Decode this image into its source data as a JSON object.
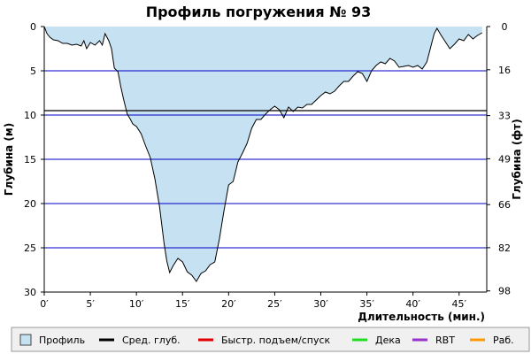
{
  "chart_data": {
    "type": "area",
    "title": "Профиль погружения № 93",
    "xlabel": "Длительность (мин.)",
    "ylabel_left": "Глубина (м)",
    "ylabel_right": "Глубина (фт)",
    "xlim": [
      0,
      48
    ],
    "ylim": [
      0,
      30
    ],
    "x_ticks": [
      0,
      5,
      10,
      15,
      20,
      25,
      30,
      35,
      40,
      45
    ],
    "x_tick_labels": [
      "0′",
      "5′",
      "10′",
      "15′",
      "20′",
      "25′",
      "30′",
      "35′",
      "40′",
      "45′"
    ],
    "y_ticks_left": [
      0,
      5,
      10,
      15,
      20,
      25,
      30
    ],
    "y_tick_labels_left": [
      "0",
      "5",
      "10",
      "15",
      "20",
      "25",
      "30"
    ],
    "y_ticks_right_depth_m": [
      0,
      4.88,
      10.06,
      14.94,
      20.12,
      24.99,
      29.87
    ],
    "y_tick_labels_right": [
      "0",
      "16",
      "33",
      "49",
      "66",
      "82",
      "98"
    ],
    "avg_depth_m": 9.5,
    "grid": "horizontal",
    "colors": {
      "profile_fill": "#c5e1f2",
      "profile_line": "#000000",
      "grid": "#0000c8",
      "avg_depth": "#000000",
      "fast_ascent": "#e00000",
      "deco": "#22dd22",
      "rbt": "#9933cc",
      "work": "#ff9900"
    },
    "series": [
      {
        "name": "Профиль",
        "x": [
          0,
          0.3,
          0.6,
          1,
          1.5,
          2,
          2.5,
          3,
          3.5,
          4,
          4.3,
          4.6,
          5,
          5.5,
          6,
          6.3,
          6.6,
          7,
          7.3,
          7.6,
          8,
          8.3,
          8.6,
          9,
          9.3,
          9.6,
          10,
          10.5,
          11,
          11.5,
          12,
          12.5,
          13,
          13.3,
          13.6,
          14,
          14.5,
          15,
          15.5,
          16,
          16.5,
          17,
          17.5,
          18,
          18.5,
          19,
          19.5,
          20,
          20.5,
          21,
          21.5,
          22,
          22.5,
          23,
          23.5,
          24,
          24.5,
          25,
          25.5,
          26,
          26.5,
          27,
          27.5,
          28,
          28.5,
          29,
          29.5,
          30,
          30.5,
          31,
          31.5,
          32,
          32.5,
          33,
          33.5,
          34,
          34.5,
          35,
          35.5,
          36,
          36.5,
          37,
          37.5,
          38,
          38.5,
          39,
          39.5,
          40,
          40.5,
          41,
          41.5,
          42,
          42.3,
          42.6,
          43,
          43.5,
          44,
          44.5,
          45,
          45.5,
          46,
          46.5,
          47,
          47.5
        ],
        "depth": [
          0,
          0.8,
          1.2,
          1.5,
          1.6,
          1.9,
          1.9,
          2.1,
          2.0,
          2.2,
          1.6,
          2.5,
          1.8,
          2.1,
          1.6,
          2.1,
          0.8,
          1.6,
          2.5,
          4.7,
          5.1,
          6.8,
          8.2,
          9.9,
          10.4,
          11.0,
          11.3,
          12.1,
          13.5,
          14.8,
          17.2,
          20.3,
          24.5,
          26.5,
          27.8,
          27.0,
          26.2,
          26.6,
          27.7,
          28.1,
          28.8,
          27.9,
          27.6,
          26.9,
          26.6,
          24.0,
          20.8,
          17.9,
          17.5,
          15.3,
          14.3,
          13.2,
          11.5,
          10.5,
          10.5,
          9.9,
          9.4,
          9.0,
          9.4,
          10.3,
          9.1,
          9.6,
          9.1,
          9.2,
          8.8,
          8.8,
          8.3,
          7.8,
          7.4,
          7.6,
          7.3,
          6.7,
          6.2,
          6.2,
          5.6,
          5.1,
          5.3,
          6.2,
          5.0,
          4.4,
          4.0,
          4.2,
          3.6,
          3.9,
          4.6,
          4.5,
          4.4,
          4.6,
          4.4,
          4.8,
          4.0,
          2.0,
          0.8,
          0.2,
          0.9,
          1.7,
          2.5,
          2.0,
          1.4,
          1.6,
          0.9,
          1.4,
          1.0,
          0.7,
          0
        ]
      }
    ],
    "legend": {
      "placement": "bottom",
      "items": [
        {
          "label": "Профиль",
          "kind": "swatch",
          "color": "#c5e1f2"
        },
        {
          "label": "Сред. глуб.",
          "kind": "line",
          "color": "#000000"
        },
        {
          "label": "Быстр. подъем/спуск",
          "kind": "line",
          "color": "#e00000"
        },
        {
          "label": "Дека",
          "kind": "line",
          "color": "#22dd22"
        },
        {
          "label": "RBT",
          "kind": "line",
          "color": "#9933cc"
        },
        {
          "label": "Раб.",
          "kind": "line",
          "color": "#ff9900"
        }
      ]
    }
  }
}
